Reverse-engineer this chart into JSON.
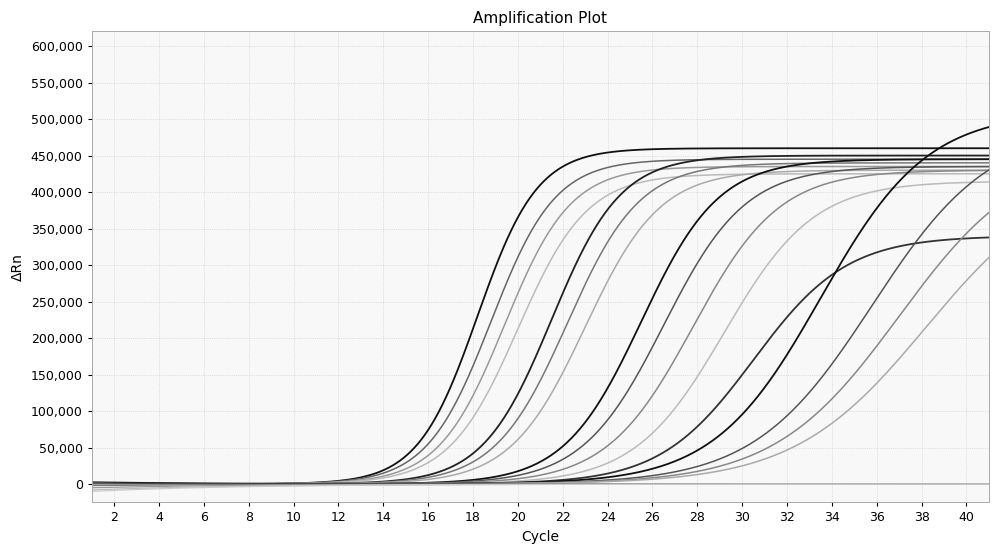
{
  "title": "Amplification Plot",
  "xlabel": "Cycle",
  "ylabel": "ΔRn",
  "xlim": [
    1,
    41
  ],
  "ylim": [
    -25000,
    620000
  ],
  "yticks": [
    0,
    50000,
    100000,
    150000,
    200000,
    250000,
    300000,
    350000,
    400000,
    450000,
    500000,
    550000,
    600000
  ],
  "xticks": [
    2,
    4,
    6,
    8,
    10,
    12,
    14,
    16,
    18,
    20,
    22,
    24,
    26,
    28,
    30,
    32,
    34,
    36,
    38,
    40
  ],
  "background_color": "#f8f8f8",
  "curves": [
    {
      "midpoint": 18.2,
      "L": 460000,
      "k": 0.75,
      "color": "#111111",
      "lw": 1.3
    },
    {
      "midpoint": 18.8,
      "L": 445000,
      "k": 0.7,
      "color": "#666666",
      "lw": 1.1
    },
    {
      "midpoint": 19.4,
      "L": 435000,
      "k": 0.68,
      "color": "#999999",
      "lw": 1.1
    },
    {
      "midpoint": 20.0,
      "L": 425000,
      "k": 0.65,
      "color": "#bbbbbb",
      "lw": 1.1
    },
    {
      "midpoint": 21.5,
      "L": 450000,
      "k": 0.65,
      "color": "#222222",
      "lw": 1.3
    },
    {
      "midpoint": 22.2,
      "L": 440000,
      "k": 0.62,
      "color": "#777777",
      "lw": 1.1
    },
    {
      "midpoint": 23.0,
      "L": 430000,
      "k": 0.6,
      "color": "#aaaaaa",
      "lw": 1.1
    },
    {
      "midpoint": 25.5,
      "L": 445000,
      "k": 0.58,
      "color": "#111111",
      "lw": 1.3
    },
    {
      "midpoint": 26.5,
      "L": 435000,
      "k": 0.55,
      "color": "#555555",
      "lw": 1.1
    },
    {
      "midpoint": 27.8,
      "L": 430000,
      "k": 0.52,
      "color": "#888888",
      "lw": 1.1
    },
    {
      "midpoint": 29.2,
      "L": 415000,
      "k": 0.5,
      "color": "#bbbbbb",
      "lw": 1.1
    },
    {
      "midpoint": 30.5,
      "L": 340000,
      "k": 0.48,
      "color": "#333333",
      "lw": 1.3
    },
    {
      "midpoint": 33.5,
      "L": 510000,
      "k": 0.42,
      "color": "#111111",
      "lw": 1.3
    },
    {
      "midpoint": 35.8,
      "L": 490000,
      "k": 0.38,
      "color": "#555555",
      "lw": 1.1
    },
    {
      "midpoint": 37.0,
      "L": 460000,
      "k": 0.36,
      "color": "#888888",
      "lw": 1.1
    },
    {
      "midpoint": 38.2,
      "L": 430000,
      "k": 0.34,
      "color": "#aaaaaa",
      "lw": 1.1
    }
  ],
  "flat_curves": [
    {
      "slope": -200,
      "intercept": 3000,
      "color": "#111111",
      "lw": 0.9
    },
    {
      "slope": -150,
      "intercept": 1500,
      "color": "#444444",
      "lw": 0.9
    },
    {
      "slope": -100,
      "intercept": -2000,
      "color": "#777777",
      "lw": 0.9
    },
    {
      "slope": -80,
      "intercept": -5000,
      "color": "#999999",
      "lw": 0.9
    },
    {
      "slope": -60,
      "intercept": -8000,
      "color": "#bbbbbb",
      "lw": 0.9
    },
    {
      "slope": -50,
      "intercept": -10000,
      "color": "#cccccc",
      "lw": 0.9
    }
  ]
}
